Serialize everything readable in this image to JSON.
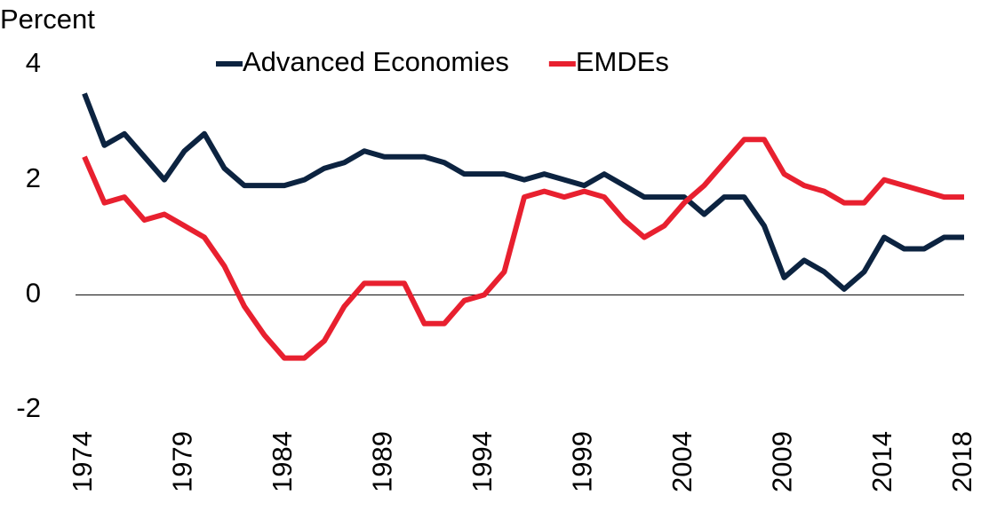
{
  "chart_data": {
    "type": "line",
    "y_label": "Percent",
    "x": [
      1974,
      1975,
      1976,
      1977,
      1978,
      1979,
      1980,
      1981,
      1982,
      1983,
      1984,
      1985,
      1986,
      1987,
      1988,
      1989,
      1990,
      1991,
      1992,
      1993,
      1994,
      1995,
      1996,
      1997,
      1998,
      1999,
      2000,
      2001,
      2002,
      2003,
      2004,
      2005,
      2006,
      2007,
      2008,
      2009,
      2010,
      2011,
      2012,
      2013,
      2014,
      2015,
      2016,
      2017,
      2018
    ],
    "xlim": [
      1974,
      2018
    ],
    "xticks": [
      1974,
      1979,
      1984,
      1989,
      1994,
      1999,
      2004,
      2009,
      2014,
      2018
    ],
    "ylim": [
      -2,
      4
    ],
    "yticks": [
      -2,
      0,
      2,
      4
    ],
    "series": [
      {
        "name": "Advanced Economies",
        "color": "#0c2340",
        "values": [
          3.5,
          2.6,
          2.8,
          2.4,
          2.0,
          2.5,
          2.8,
          2.2,
          1.9,
          1.9,
          1.9,
          2.0,
          2.2,
          2.3,
          2.5,
          2.4,
          2.4,
          2.4,
          2.3,
          2.1,
          2.1,
          2.1,
          2.0,
          2.1,
          2.0,
          1.9,
          2.1,
          1.9,
          1.7,
          1.7,
          1.7,
          1.4,
          1.7,
          1.7,
          1.2,
          0.3,
          0.6,
          0.4,
          0.1,
          0.4,
          1.0,
          0.8,
          0.8,
          1.0,
          1.0
        ]
      },
      {
        "name": "EMDEs",
        "color": "#e8202f",
        "values": [
          2.4,
          1.6,
          1.7,
          1.3,
          1.4,
          1.2,
          1.0,
          0.5,
          -0.2,
          -0.7,
          -1.1,
          -1.1,
          -0.8,
          -0.2,
          0.2,
          0.2,
          0.2,
          -0.5,
          -0.5,
          -0.1,
          0.0,
          0.4,
          1.7,
          1.8,
          1.7,
          1.8,
          1.7,
          1.3,
          1.0,
          1.2,
          1.6,
          1.9,
          2.3,
          2.7,
          2.7,
          2.1,
          1.9,
          1.8,
          1.6,
          1.6,
          2.0,
          1.9,
          1.8,
          1.7,
          1.7
        ]
      }
    ]
  }
}
